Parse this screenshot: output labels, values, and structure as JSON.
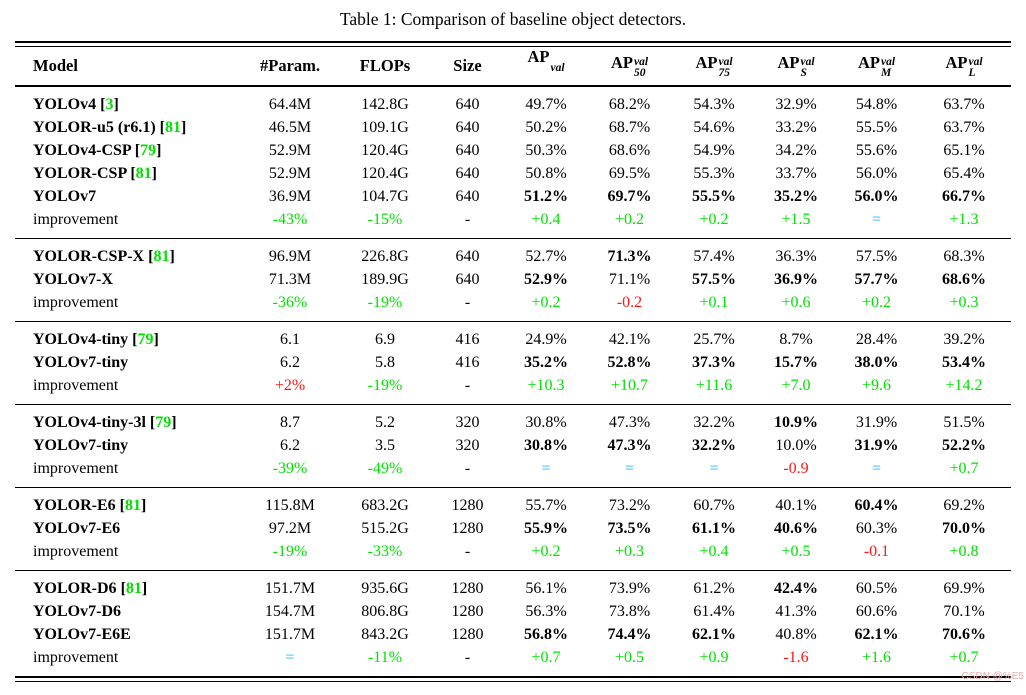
{
  "title": "Table 1: Comparison of baseline object detectors.",
  "watermark": "CSDN @%E5",
  "colors": {
    "positive": "#00e100",
    "negative": "#ff1515",
    "equal": "#5cc8f8",
    "reference": "#00e100"
  },
  "header": {
    "model": "Model",
    "param": "#Param.",
    "flops": "FLOPs",
    "size": "Size",
    "ap_columns": [
      {
        "base": "AP",
        "sup": "val",
        "sub": ""
      },
      {
        "base": "AP",
        "sup": "val",
        "sub": "50"
      },
      {
        "base": "AP",
        "sup": "val",
        "sub": "75"
      },
      {
        "base": "AP",
        "sup": "val",
        "sub": "S"
      },
      {
        "base": "AP",
        "sup": "val",
        "sub": "M"
      },
      {
        "base": "AP",
        "sup": "val",
        "sub": "L"
      }
    ]
  },
  "cell_markers": {
    "*": "bold",
    "g:": "green-positive",
    "r:": "red-negative",
    "c:": "cyan-equal"
  },
  "groups": [
    {
      "rows": [
        {
          "model": "YOLOv4",
          "ref": "3",
          "cells": [
            "64.4M",
            "142.8G",
            "640",
            "49.7%",
            "68.2%",
            "54.3%",
            "32.9%",
            "54.8%",
            "63.7%"
          ]
        },
        {
          "model": "YOLOR-u5 (r6.1)",
          "ref": "81",
          "cells": [
            "46.5M",
            "109.1G",
            "640",
            "50.2%",
            "68.7%",
            "54.6%",
            "33.2%",
            "55.5%",
            "63.7%"
          ]
        },
        {
          "model": "YOLOv4-CSP",
          "ref": "79",
          "cells": [
            "52.9M",
            "120.4G",
            "640",
            "50.3%",
            "68.6%",
            "54.9%",
            "34.2%",
            "55.6%",
            "65.1%"
          ]
        },
        {
          "model": "YOLOR-CSP",
          "ref": "81",
          "cells": [
            "52.9M",
            "120.4G",
            "640",
            "50.8%",
            "69.5%",
            "55.3%",
            "33.7%",
            "56.0%",
            "65.4%"
          ]
        },
        {
          "model": "YOLOv7",
          "cells": [
            "36.9M",
            "104.7G",
            "640",
            "*51.2%",
            "*69.7%",
            "*55.5%",
            "*35.2%",
            "*56.0%",
            "*66.7%"
          ]
        },
        {
          "model": "improvement",
          "improvement": true,
          "cells": [
            "g:-43%",
            "g:-15%",
            "-",
            "g:+0.4",
            "g:+0.2",
            "g:+0.2",
            "g:+1.5",
            "c:=",
            "g:+1.3"
          ]
        }
      ]
    },
    {
      "rows": [
        {
          "model": "YOLOR-CSP-X",
          "ref": "81",
          "cells": [
            "96.9M",
            "226.8G",
            "640",
            "52.7%",
            "*71.3%",
            "57.4%",
            "36.3%",
            "57.5%",
            "68.3%"
          ]
        },
        {
          "model": "YOLOv7-X",
          "cells": [
            "71.3M",
            "189.9G",
            "640",
            "*52.9%",
            "71.1%",
            "*57.5%",
            "*36.9%",
            "*57.7%",
            "*68.6%"
          ]
        },
        {
          "model": "improvement",
          "improvement": true,
          "cells": [
            "g:-36%",
            "g:-19%",
            "-",
            "g:+0.2",
            "r:-0.2",
            "g:+0.1",
            "g:+0.6",
            "g:+0.2",
            "g:+0.3"
          ]
        }
      ]
    },
    {
      "rows": [
        {
          "model": "YOLOv4-tiny",
          "ref": "79",
          "cells": [
            "6.1",
            "6.9",
            "416",
            "24.9%",
            "42.1%",
            "25.7%",
            "8.7%",
            "28.4%",
            "39.2%"
          ]
        },
        {
          "model": "YOLOv7-tiny",
          "cells": [
            "6.2",
            "5.8",
            "416",
            "*35.2%",
            "*52.8%",
            "*37.3%",
            "*15.7%",
            "*38.0%",
            "*53.4%"
          ]
        },
        {
          "model": "improvement",
          "improvement": true,
          "cells": [
            "r:+2%",
            "g:-19%",
            "-",
            "g:+10.3",
            "g:+10.7",
            "g:+11.6",
            "g:+7.0",
            "g:+9.6",
            "g:+14.2"
          ]
        }
      ]
    },
    {
      "rows": [
        {
          "model": "YOLOv4-tiny-3l",
          "ref": "79",
          "cells": [
            "8.7",
            "5.2",
            "320",
            "30.8%",
            "47.3%",
            "32.2%",
            "*10.9%",
            "31.9%",
            "51.5%"
          ]
        },
        {
          "model": "YOLOv7-tiny",
          "cells": [
            "6.2",
            "3.5",
            "320",
            "*30.8%",
            "*47.3%",
            "*32.2%",
            "10.0%",
            "*31.9%",
            "*52.2%"
          ]
        },
        {
          "model": "improvement",
          "improvement": true,
          "cells": [
            "g:-39%",
            "g:-49%",
            "-",
            "c:=",
            "c:=",
            "c:=",
            "r:-0.9",
            "c:=",
            "g:+0.7"
          ]
        }
      ]
    },
    {
      "rows": [
        {
          "model": "YOLOR-E6",
          "ref": "81",
          "cells": [
            "115.8M",
            "683.2G",
            "1280",
            "55.7%",
            "73.2%",
            "60.7%",
            "40.1%",
            "*60.4%",
            "69.2%"
          ]
        },
        {
          "model": "YOLOv7-E6",
          "cells": [
            "97.2M",
            "515.2G",
            "1280",
            "*55.9%",
            "*73.5%",
            "*61.1%",
            "*40.6%",
            "60.3%",
            "*70.0%"
          ]
        },
        {
          "model": "improvement",
          "improvement": true,
          "cells": [
            "g:-19%",
            "g:-33%",
            "-",
            "g:+0.2",
            "g:+0.3",
            "g:+0.4",
            "g:+0.5",
            "r:-0.1",
            "g:+0.8"
          ]
        }
      ]
    },
    {
      "rows": [
        {
          "model": "YOLOR-D6",
          "ref": "81",
          "cells": [
            "151.7M",
            "935.6G",
            "1280",
            "56.1%",
            "73.9%",
            "61.2%",
            "*42.4%",
            "60.5%",
            "69.9%"
          ]
        },
        {
          "model": "YOLOv7-D6",
          "cells": [
            "154.7M",
            "806.8G",
            "1280",
            "56.3%",
            "73.8%",
            "61.4%",
            "41.3%",
            "60.6%",
            "70.1%"
          ]
        },
        {
          "model": "YOLOv7-E6E",
          "cells": [
            "151.7M",
            "843.2G",
            "1280",
            "*56.8%",
            "*74.4%",
            "*62.1%",
            "40.8%",
            "*62.1%",
            "*70.6%"
          ]
        },
        {
          "model": "improvement",
          "improvement": true,
          "cells": [
            "c:=",
            "g:-11%",
            "-",
            "g:+0.7",
            "g:+0.5",
            "g:+0.9",
            "r:-1.6",
            "g:+1.6",
            "g:+0.7"
          ]
        }
      ]
    }
  ]
}
